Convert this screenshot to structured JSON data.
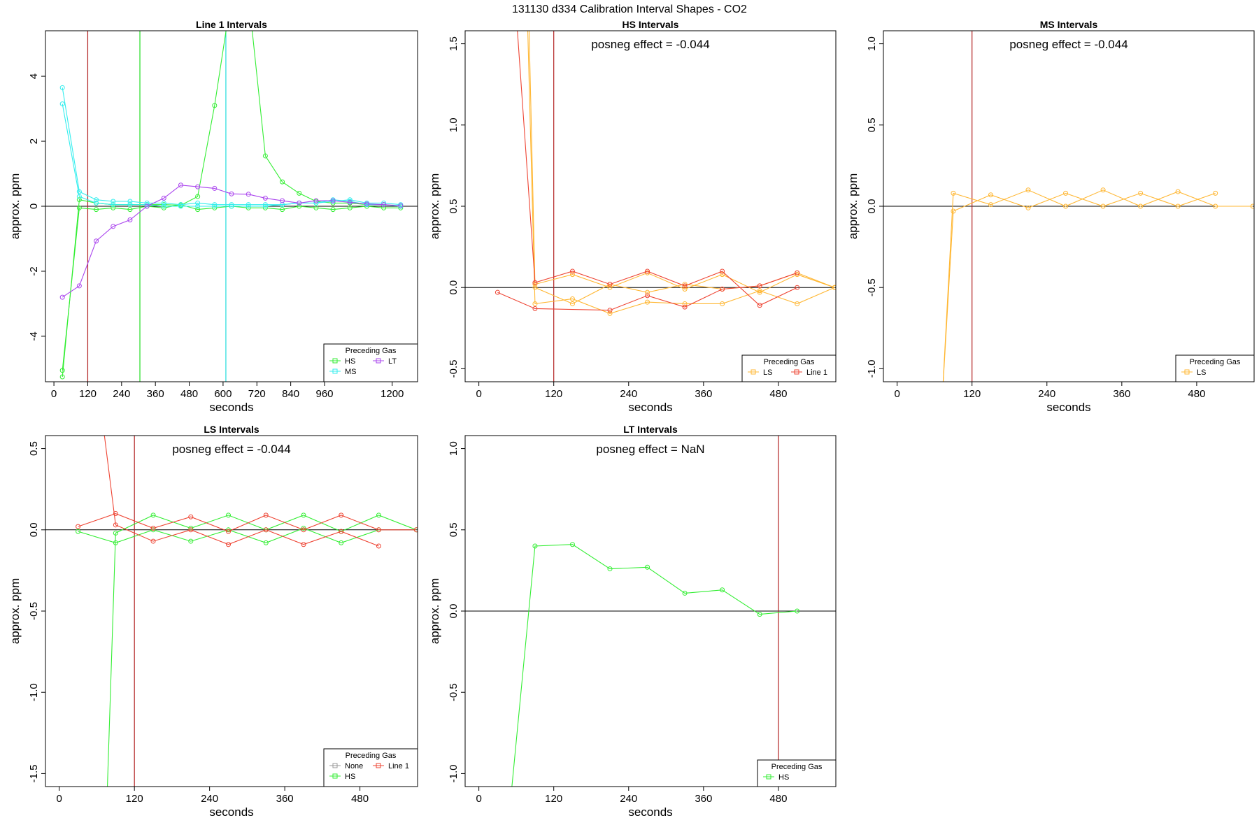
{
  "figure": {
    "title": "131130  d334   Calibration Interval Shapes - CO2"
  },
  "chart_data": [
    {
      "type": "line",
      "title": "Line 1 Intervals",
      "xlabel": "seconds",
      "ylabel": "approx. ppm",
      "xlim": [
        -30,
        1290
      ],
      "ylim": [
        -5.4,
        5.4
      ],
      "xticks": [
        0,
        120,
        240,
        360,
        480,
        600,
        720,
        840,
        960,
        1200
      ],
      "yticks": [
        -4,
        -2,
        0,
        2,
        4
      ],
      "ytick_labels": [
        "-4",
        "-2",
        "0",
        "2",
        "4"
      ],
      "hline": 0,
      "vlines": [
        {
          "x": 120,
          "color": "#b22222"
        },
        {
          "x": 305,
          "color": "#22dd22"
        },
        {
          "x": 610,
          "color": "#22dddd"
        }
      ],
      "annotation": "",
      "legend": {
        "title": "Preceding Gas",
        "position": "bottom-right",
        "entries": [
          [
            "HS",
            "MS"
          ],
          [
            "LT"
          ]
        ]
      },
      "series": [
        {
          "name": "HS",
          "color": "#33ee33",
          "x": [
            30,
            90,
            150,
            210,
            270,
            330,
            390,
            450,
            510,
            570,
            630,
            690,
            750,
            810,
            870,
            930,
            990,
            1050,
            1110,
            1170,
            1230
          ],
          "y": [
            -5.25,
            0.2,
            0.1,
            0.05,
            0.05,
            0.05,
            0.05,
            0.03,
            0.3,
            3.1,
            6.5,
            6.5,
            1.55,
            0.75,
            0.4,
            0.15,
            0.1,
            0.1,
            0.05,
            0.05,
            0.0
          ]
        },
        {
          "name": "HS",
          "color": "#33ee33",
          "x": [
            30,
            90,
            150,
            210,
            270,
            330,
            390,
            450,
            510,
            570,
            630,
            690,
            750,
            810,
            870,
            930,
            990,
            1050,
            1110,
            1170,
            1230
          ],
          "y": [
            -5.05,
            -0.05,
            -0.1,
            -0.05,
            -0.1,
            0.0,
            -0.05,
            0.05,
            -0.1,
            -0.05,
            0.0,
            -0.05,
            -0.05,
            -0.1,
            0.0,
            -0.05,
            -0.1,
            -0.05,
            0.0,
            -0.05,
            -0.05
          ]
        },
        {
          "name": "MS",
          "color": "#33eeee",
          "x": [
            30,
            90,
            150,
            210,
            270,
            330,
            390,
            450,
            510,
            570,
            630,
            690,
            750,
            810,
            870,
            930,
            990,
            1050,
            1110,
            1170,
            1230
          ],
          "y": [
            3.65,
            0.45,
            0.2,
            0.15,
            0.15,
            0.1,
            0.1,
            0.05,
            0.1,
            0.05,
            0.05,
            0.05,
            0.05,
            0.05,
            0.1,
            0.1,
            0.15,
            0.2,
            0.1,
            0.1,
            0.05
          ]
        },
        {
          "name": "MS",
          "color": "#33eeee",
          "x": [
            30,
            90,
            150,
            210,
            270,
            330,
            390,
            450,
            510,
            570,
            630,
            690,
            750,
            810,
            870,
            930,
            990,
            1050,
            1110,
            1170,
            1230
          ],
          "y": [
            3.15,
            0.3,
            0.1,
            0.05,
            0.05,
            0.05,
            0.0,
            0.0,
            0.0,
            0.0,
            0.0,
            0.0,
            0.0,
            0.05,
            0.1,
            0.1,
            0.2,
            0.15,
            0.05,
            0.05,
            0.0
          ]
        },
        {
          "name": "LT",
          "color": "#aa44ee",
          "x": [
            30,
            90,
            150,
            210,
            270,
            330,
            390,
            450,
            510,
            570,
            630,
            690,
            750,
            810,
            870,
            930,
            990,
            1050,
            1110,
            1170,
            1230
          ],
          "y": [
            -2.8,
            -2.45,
            -1.07,
            -0.62,
            -0.42,
            0.0,
            0.25,
            0.65,
            0.6,
            0.55,
            0.38,
            0.37,
            0.25,
            0.17,
            0.1,
            0.17,
            0.17,
            0.12,
            0.07,
            0.05,
            0.02
          ]
        }
      ]
    },
    {
      "type": "line",
      "title": "HS Intervals",
      "xlabel": "seconds",
      "ylabel": "approx. ppm",
      "xlim": [
        -22,
        572
      ],
      "ylim": [
        -0.58,
        1.58
      ],
      "xticks": [
        0,
        120,
        240,
        360,
        480
      ],
      "yticks": [
        -0.5,
        0.0,
        0.5,
        1.0,
        1.5
      ],
      "ytick_labels": [
        "-0.5",
        "0.0",
        "0.5",
        "1.0",
        "1.5"
      ],
      "hline": 0,
      "vlines": [
        {
          "x": 120,
          "color": "#b22222"
        }
      ],
      "annotation": "posneg effect = -0.044",
      "legend": {
        "title": "Preceding Gas",
        "position": "bottom-right",
        "entries": [
          [
            "LS"
          ],
          [
            "Line 1"
          ]
        ]
      },
      "series": [
        {
          "name": "LS",
          "color": "#ffb733",
          "x": [
            75,
            90,
            150,
            210,
            270,
            330,
            390,
            450,
            510,
            570
          ],
          "y": [
            2.5,
            0.02,
            0.08,
            0.0,
            0.09,
            -0.01,
            0.08,
            -0.03,
            0.08,
            0.0
          ]
        },
        {
          "name": "LS",
          "color": "#ffb733",
          "x": [
            72,
            90,
            150,
            210,
            270,
            330,
            390,
            450,
            510,
            570
          ],
          "y": [
            2.5,
            -0.1,
            -0.07,
            -0.16,
            -0.09,
            -0.1,
            -0.1,
            -0.02,
            -0.1,
            0.0
          ]
        },
        {
          "name": "LS",
          "color": "#ffb733",
          "x": [
            90,
            150,
            210,
            270,
            330,
            390,
            450,
            510,
            570
          ],
          "y": [
            0.0,
            -0.1,
            0.02,
            -0.03,
            0.02,
            -0.01,
            0.01,
            0.09,
            0.0
          ]
        },
        {
          "name": "Line 1",
          "color": "#ee4433",
          "x": [
            45,
            90,
            150,
            210,
            270,
            330,
            390,
            450,
            510
          ],
          "y": [
            2.5,
            0.03,
            0.1,
            0.02,
            0.1,
            0.01,
            0.1,
            -0.11,
            0.0
          ]
        },
        {
          "name": "Line 1",
          "color": "#ee4433",
          "x": [
            30,
            90,
            210,
            270,
            330,
            390,
            450,
            510
          ],
          "y": [
            -0.03,
            -0.13,
            -0.14,
            -0.05,
            -0.12,
            -0.01,
            0.01,
            0.09
          ]
        }
      ]
    },
    {
      "type": "line",
      "title": "MS Intervals",
      "xlabel": "seconds",
      "ylabel": "approx. ppm",
      "xlim": [
        -22,
        572
      ],
      "ylim": [
        -1.08,
        1.08
      ],
      "xticks": [
        0,
        120,
        240,
        360,
        480
      ],
      "yticks": [
        -1.0,
        -0.5,
        0.0,
        0.5,
        1.0
      ],
      "ytick_labels": [
        "-1.0",
        "-0.5",
        "0.0",
        "0.5",
        "1.0"
      ],
      "hline": 0,
      "vlines": [
        {
          "x": 120,
          "color": "#b22222"
        }
      ],
      "annotation": "posneg effect = -0.044",
      "legend": {
        "title": "Preceding Gas",
        "position": "bottom-right",
        "entries": [
          [
            "LS"
          ]
        ]
      },
      "series": [
        {
          "name": "LS",
          "color": "#ffb733",
          "x": [
            72,
            90,
            150,
            210,
            270,
            330,
            390,
            450,
            510,
            570
          ],
          "y": [
            -1.2,
            0.08,
            0.01,
            0.1,
            0.0,
            0.1,
            0.0,
            0.09,
            0.0,
            0.0
          ]
        },
        {
          "name": "LS",
          "color": "#ffb733",
          "x": [
            72,
            90,
            150,
            210,
            270,
            330,
            390,
            450,
            510
          ],
          "y": [
            -1.2,
            -0.03,
            0.07,
            -0.01,
            0.08,
            0.0,
            0.08,
            0.0,
            0.08
          ]
        }
      ]
    },
    {
      "type": "line",
      "title": "LS Intervals",
      "xlabel": "seconds",
      "ylabel": "approx. ppm",
      "xlim": [
        -22,
        572
      ],
      "ylim": [
        -1.58,
        0.58
      ],
      "xticks": [
        0,
        120,
        240,
        360,
        480
      ],
      "yticks": [
        -1.5,
        -1.0,
        -0.5,
        0.0,
        0.5
      ],
      "ytick_labels": [
        "-1.5",
        "-1.0",
        "-0.5",
        "0.0",
        "0.5"
      ],
      "hline": 0,
      "vlines": [
        {
          "x": 120,
          "color": "#b22222"
        }
      ],
      "annotation": "posneg effect = -0.044",
      "legend": {
        "title": "Preceding Gas",
        "position": "bottom-right",
        "entries": [
          [
            "None",
            "HS"
          ],
          [
            "Line 1"
          ]
        ]
      },
      "series": [
        {
          "name": "HS",
          "color": "#33ee33",
          "x": [
            75,
            90,
            150,
            210,
            270,
            330,
            390,
            450,
            510,
            570
          ],
          "y": [
            -1.8,
            -0.02,
            0.09,
            0.01,
            0.09,
            0.0,
            0.09,
            -0.01,
            0.09,
            0.0
          ]
        },
        {
          "name": "HS",
          "color": "#33ee33",
          "x": [
            30,
            90,
            150,
            210,
            270,
            330,
            390,
            450,
            510
          ],
          "y": [
            -0.01,
            -0.08,
            0.0,
            -0.07,
            0.0,
            -0.08,
            0.01,
            -0.08,
            0.0
          ]
        },
        {
          "name": "Line 1",
          "color": "#ee4433",
          "x": [
            65,
            90,
            150,
            210,
            270,
            330,
            390,
            450,
            510
          ],
          "y": [
            0.8,
            0.03,
            -0.07,
            0.0,
            -0.09,
            0.0,
            -0.09,
            -0.01,
            -0.1
          ]
        },
        {
          "name": "Line 1",
          "color": "#ee4433",
          "x": [
            30,
            90,
            150,
            210,
            270,
            330,
            390,
            450,
            510,
            570
          ],
          "y": [
            0.02,
            0.1,
            0.01,
            0.08,
            -0.01,
            0.09,
            0.0,
            0.09,
            0.0,
            0.0
          ]
        }
      ]
    },
    {
      "type": "line",
      "title": "LT Intervals",
      "xlabel": "seconds",
      "ylabel": "approx. ppm",
      "xlim": [
        -22,
        572
      ],
      "ylim": [
        -1.08,
        1.08
      ],
      "xticks": [
        0,
        120,
        240,
        360,
        480
      ],
      "yticks": [
        -1.0,
        -0.5,
        0.0,
        0.5,
        1.0
      ],
      "ytick_labels": [
        "-1.0",
        "-0.5",
        "0.0",
        "0.5",
        "1.0"
      ],
      "hline": 0,
      "vlines": [
        {
          "x": 480,
          "color": "#b22222"
        }
      ],
      "annotation": "posneg effect = NaN",
      "legend": {
        "title": "Preceding Gas",
        "position": "bottom-right",
        "entries": [
          [
            "HS"
          ]
        ]
      },
      "series": [
        {
          "name": "HS",
          "color": "#33ee33",
          "x": [
            50,
            90,
            150,
            210,
            270,
            330,
            390,
            450,
            510
          ],
          "y": [
            -1.2,
            0.4,
            0.41,
            0.26,
            0.27,
            0.11,
            0.13,
            -0.02,
            0.0
          ]
        }
      ]
    }
  ],
  "legend_colors": {
    "None": "#999999",
    "HS": "#33ee33",
    "MS": "#33eeee",
    "LT": "#aa44ee",
    "LS": "#ffb733",
    "Line 1": "#ee4433"
  }
}
